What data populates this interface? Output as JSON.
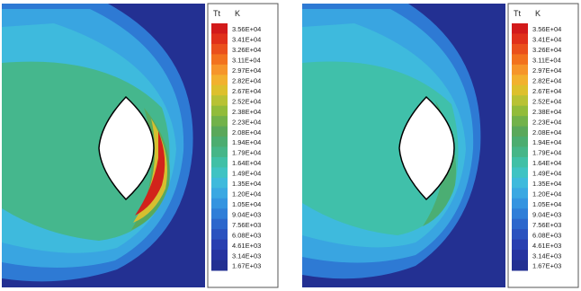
{
  "chart_data": [
    {
      "type": "heatmap",
      "variable": "Tt",
      "unit": "K",
      "colorbar_levels": [
        "3.56E+04",
        "3.41E+04",
        "3.26E+04",
        "3.11E+04",
        "2.97E+04",
        "2.82E+04",
        "2.67E+04",
        "2.52E+04",
        "2.38E+04",
        "2.23E+04",
        "2.08E+04",
        "1.94E+04",
        "1.79E+04",
        "1.64E+04",
        "1.49E+04",
        "1.35E+04",
        "1.20E+04",
        "1.05E+04",
        "9.04E+03",
        "7.56E+03",
        "6.08E+03",
        "4.61E+03",
        "3.14E+03",
        "1.67E+03"
      ],
      "colorbar_colors": [
        "#d21a1a",
        "#e0301a",
        "#ea501c",
        "#f2721e",
        "#f6952a",
        "#f2b12e",
        "#ddc02c",
        "#b8c234",
        "#92bc3a",
        "#72b24a",
        "#5aa85a",
        "#4cad70",
        "#46b688",
        "#40c0a6",
        "#3fc3c3",
        "#3ebadc",
        "#3aa8e2",
        "#3494e0",
        "#2f7ed8",
        "#2c67cc",
        "#2a52bf",
        "#283fb0",
        "#2633a0",
        "#233092"
      ],
      "field": "peak_near_shock_red"
    },
    {
      "type": "heatmap",
      "variable": "Tt",
      "unit": "K",
      "colorbar_levels": [
        "3.56E+04",
        "3.41E+04",
        "3.26E+04",
        "3.11E+04",
        "2.97E+04",
        "2.82E+04",
        "2.67E+04",
        "2.52E+04",
        "2.38E+04",
        "2.23E+04",
        "2.08E+04",
        "1.94E+04",
        "1.79E+04",
        "1.64E+04",
        "1.49E+04",
        "1.35E+04",
        "1.20E+04",
        "1.05E+04",
        "9.04E+03",
        "7.56E+03",
        "6.08E+03",
        "4.61E+03",
        "3.14E+03",
        "1.67E+03"
      ],
      "colorbar_colors": [
        "#d21a1a",
        "#e0301a",
        "#ea501c",
        "#f2721e",
        "#f6952a",
        "#f2b12e",
        "#ddc02c",
        "#b8c234",
        "#92bc3a",
        "#72b24a",
        "#5aa85a",
        "#4cad70",
        "#46b688",
        "#40c0a6",
        "#3fc3c3",
        "#3ebadc",
        "#3aa8e2",
        "#3494e0",
        "#2f7ed8",
        "#2c67cc",
        "#2a52bf",
        "#283fb0",
        "#2633a0",
        "#233092"
      ],
      "field": "cooler_green_layer"
    }
  ]
}
